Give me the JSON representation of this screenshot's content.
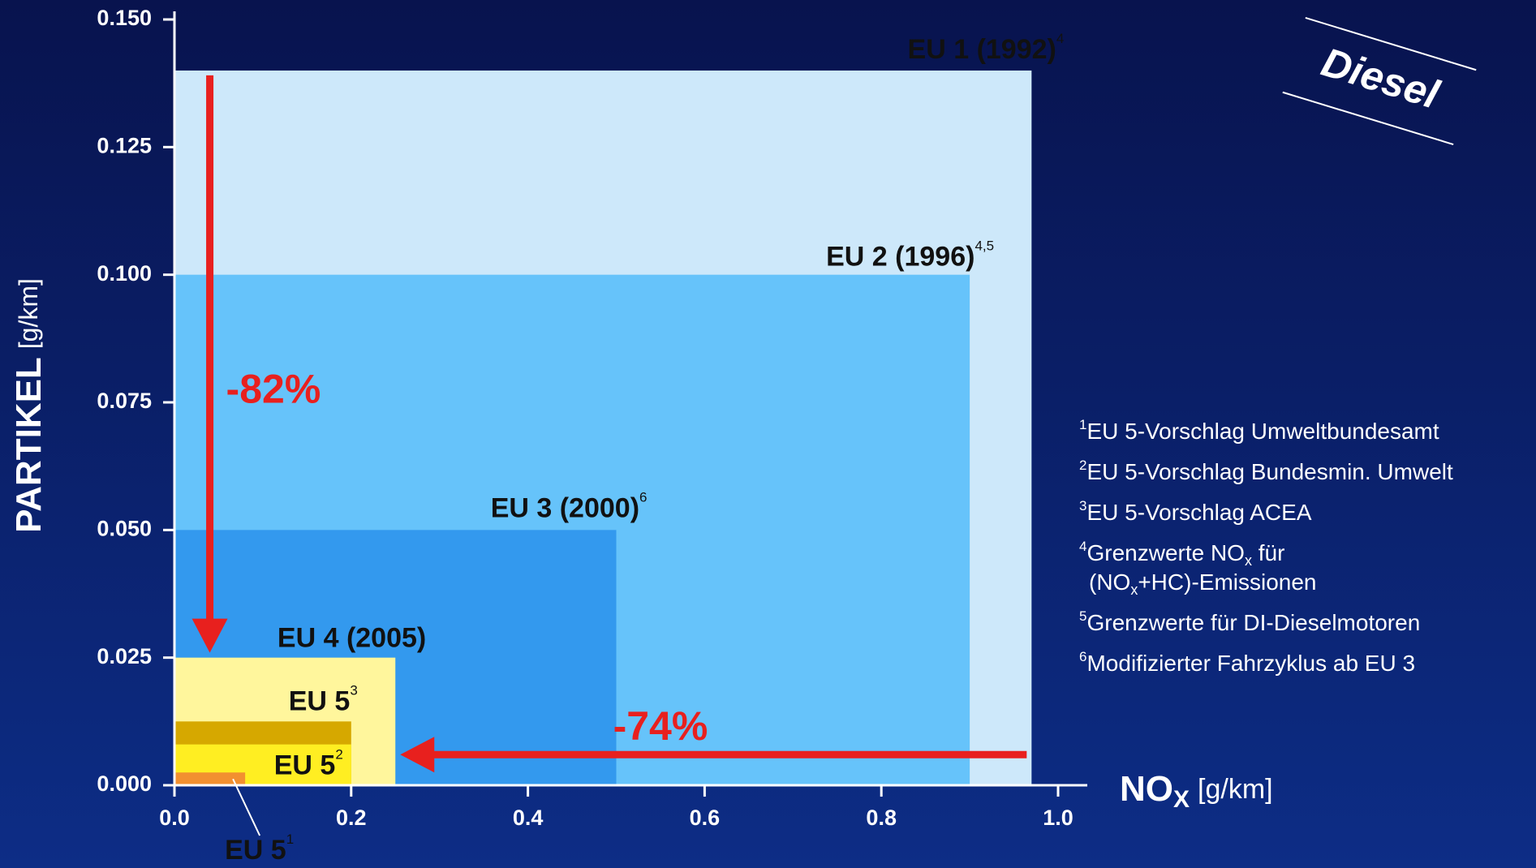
{
  "chart_data": {
    "type": "limit-boxes",
    "stamp": "Diesel",
    "y_label": [
      "PARTIKEL",
      "[g/km]"
    ],
    "x_label": [
      "NO",
      "X",
      "[g/km]"
    ],
    "xlim": [
      0,
      1.0
    ],
    "ylim": [
      0,
      0.15
    ],
    "xticks": [
      {
        "value": 0,
        "label": "0.0"
      },
      0.2,
      0.4,
      0.6,
      0.8,
      {
        "value": 1.0,
        "label": "1.0"
      }
    ],
    "yticks": [
      {
        "value": 0,
        "label": "0.000"
      },
      0.025,
      {
        "value": 0.05,
        "label": "0.050"
      },
      0.075,
      {
        "value": 0.1,
        "label": "0.100"
      },
      0.125,
      {
        "value": 0.15,
        "label": "0.150"
      }
    ],
    "series": [
      {
        "name": "EU 1 (1992)",
        "sup": "4",
        "color": "#cde8fa",
        "x": 0.97,
        "y": 0.14
      },
      {
        "name": "EU 2 (1996)",
        "sup": "4,5",
        "color": "#66c3fa",
        "x": 0.9,
        "y": 0.1
      },
      {
        "name": "EU 3 (2000)",
        "sup": "6",
        "color": "#3399ee",
        "x": 0.5,
        "y": 0.05
      },
      {
        "name": "EU 4 (2005)",
        "sup": "",
        "color": "#fff69c",
        "x": 0.25,
        "y": 0.025
      },
      {
        "name": "EU 5",
        "sup": "3",
        "color": "#d6a800",
        "x": 0.2,
        "y": 0.0125
      },
      {
        "name": "EU 5",
        "sup": "2",
        "color": "#ffee22",
        "x": 0.2,
        "y": 0.008
      },
      {
        "name": "EU 5",
        "sup": "1",
        "color": "#f29030",
        "x": 0.08,
        "y": 0.0025
      }
    ],
    "annotations": [
      "-82%",
      "-74%"
    ],
    "footnotes": [
      {
        "mark": "1",
        "lines": [
          [
            "EU 5-Vorschlag Umweltbundesamt"
          ]
        ]
      },
      {
        "mark": "2",
        "lines": [
          [
            "EU 5-Vorschlag Bundesmin. Umwelt"
          ]
        ]
      },
      {
        "mark": "3",
        "lines": [
          [
            "EU 5-Vorschlag ACEA"
          ]
        ]
      },
      {
        "mark": "4",
        "lines": [
          [
            "Grenzwerte NO",
            "x",
            " für"
          ],
          [
            "(NO",
            "x",
            "+HC)-Emissionen"
          ]
        ]
      },
      {
        "mark": "5",
        "lines": [
          [
            "Grenzwerte für DI-Dieselmotoren"
          ]
        ]
      },
      {
        "mark": "6",
        "lines": [
          [
            "Modifizierter Fahrzyklus ab EU 3"
          ]
        ]
      }
    ]
  }
}
